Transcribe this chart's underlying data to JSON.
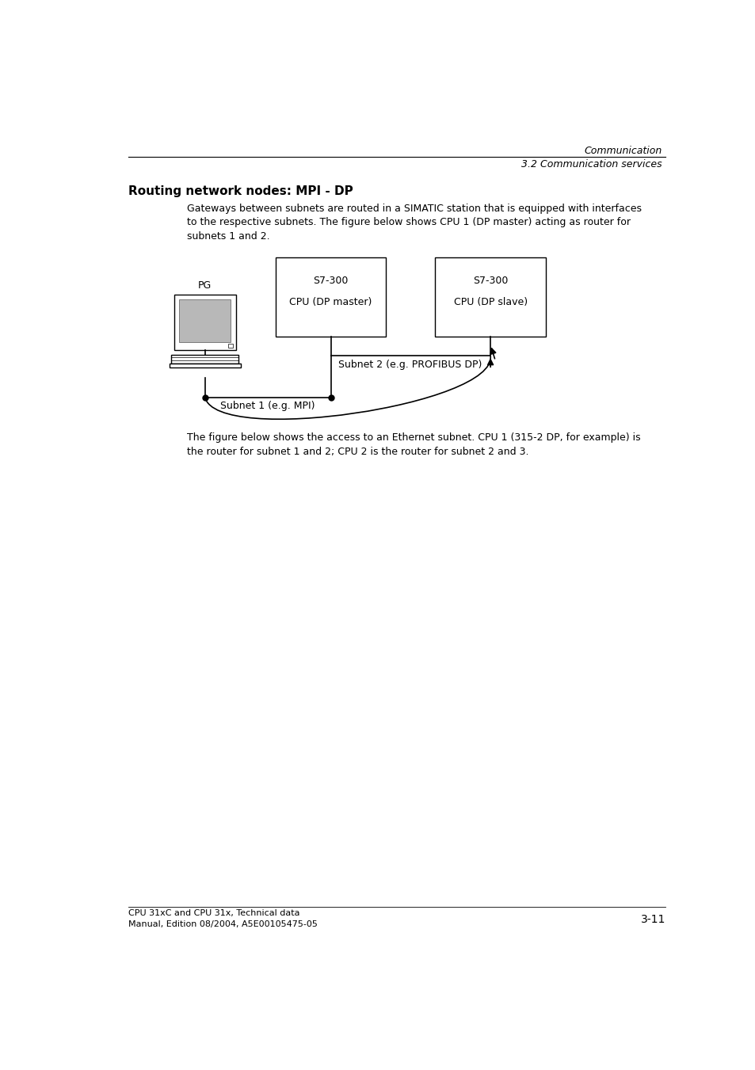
{
  "page_width": 9.54,
  "page_height": 13.51,
  "bg_color": "#ffffff",
  "header_italic_top": "Communication",
  "header_italic_bottom": "3.2 Communication services",
  "section_title": "Routing network nodes: MPI - DP",
  "body_text_1": "Gateways between subnets are routed in a SIMATIC station that is equipped with interfaces\nto the respective subnets. The figure below shows CPU 1 (DP master) acting as router for\nsubnets 1 and 2.",
  "body_text_2": "The figure below shows the access to an Ethernet subnet. CPU 1 (315-2 DP, for example) is\nthe router for subnet 1 and 2; CPU 2 is the router for subnet 2 and 3.",
  "footer_left_1": "CPU 31xC and CPU 31x, Technical data",
  "footer_left_2": "Manual, Edition 08/2004, A5E00105475-05",
  "footer_right": "3-11",
  "box1_label_top": "S7-300",
  "box1_label_bot": "CPU (DP master)",
  "box2_label_top": "S7-300",
  "box2_label_bot": "CPU (DP slave)",
  "pg_label": "PG",
  "subnet1_label": "Subnet 1 (e.g. MPI)",
  "subnet2_label": "Subnet 2 (e.g. PROFIBUS DP)"
}
